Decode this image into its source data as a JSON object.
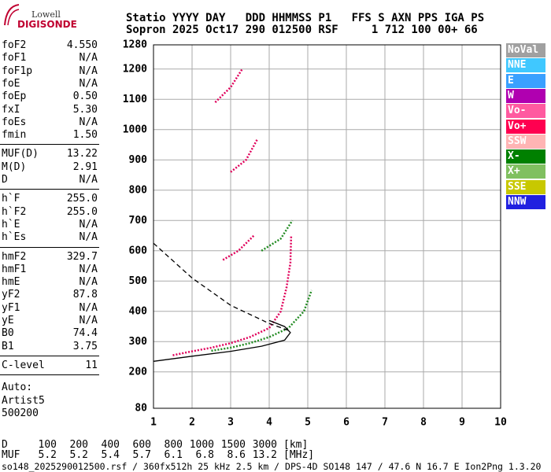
{
  "logo": {
    "top": "Lowell",
    "bottom": "DIGISONDE"
  },
  "header": {
    "line1": "Statio YYYY DAY   DDD HHMMSS P1   FFS S AXN PPS IGA PS",
    "line2": "Sopron 2025 Oct17 290 012500 RSF     1 712 100 00+ 66"
  },
  "params": [
    [
      [
        "foF2",
        "4.550"
      ],
      [
        "foF1",
        "N/A"
      ],
      [
        "foF1p",
        "N/A"
      ],
      [
        "foE",
        "N/A"
      ],
      [
        "foEp",
        "0.50"
      ],
      [
        "fxI",
        "5.30"
      ],
      [
        "foEs",
        "N/A"
      ],
      [
        "fmin",
        "1.50"
      ]
    ],
    [
      [
        "MUF(D)",
        "13.22"
      ],
      [
        "M(D)",
        "2.91"
      ],
      [
        "D",
        "N/A"
      ]
    ],
    [
      [
        "h`F",
        "255.0"
      ],
      [
        "h`F2",
        "255.0"
      ],
      [
        "h`E",
        "N/A"
      ],
      [
        "h`Es",
        "N/A"
      ]
    ],
    [
      [
        "hmF2",
        "329.7"
      ],
      [
        "hmF1",
        "N/A"
      ],
      [
        "hmE",
        "N/A"
      ],
      [
        "yF2",
        "87.8"
      ],
      [
        "yF1",
        "N/A"
      ],
      [
        "yE",
        "N/A"
      ],
      [
        "B0",
        "74.4"
      ],
      [
        "B1",
        "3.75"
      ]
    ],
    [
      [
        "C-level",
        "11"
      ]
    ]
  ],
  "auto": [
    "Auto:",
    "Artist5",
    "500200"
  ],
  "legend": [
    {
      "name": "NoVal",
      "color": "#a0a0a0"
    },
    {
      "name": "NNE",
      "color": "#40c8ff"
    },
    {
      "name": "E",
      "color": "#3aa0ff"
    },
    {
      "name": "W",
      "color": "#b000b0"
    },
    {
      "name": "Vo-",
      "color": "#ff5aa0"
    },
    {
      "name": "Vo+",
      "color": "#ff0050"
    },
    {
      "name": "SSW",
      "color": "#ffb4b4"
    },
    {
      "name": "X-",
      "color": "#008000"
    },
    {
      "name": "X+",
      "color": "#80c060"
    },
    {
      "name": "SSE",
      "color": "#c8c800"
    },
    {
      "name": "NNW",
      "color": "#2020e0"
    }
  ],
  "table": {
    "rows": [
      {
        "label": "D",
        "cells": [
          "100",
          "200",
          "400",
          "600",
          "800",
          "1000",
          "1500",
          "3000"
        ],
        "unit": "[km]"
      },
      {
        "label": "MUF",
        "cells": [
          "5.2",
          "5.2",
          "5.4",
          "5.7",
          "6.1",
          "6.8",
          "8.6",
          "13.2"
        ],
        "unit": "[MHz]"
      }
    ]
  },
  "footer": "so148_2025290012500.rsf / 360fx512h 25 kHz 2.5 km / DPS-4D SO148 147 / 47.6 N 16.7 E Ion2Png 1.3.20",
  "chart_data": {
    "type": "line",
    "xlim": [
      1,
      10
    ],
    "xticks": [
      1,
      2,
      3,
      4,
      5,
      6,
      7,
      8,
      9,
      10
    ],
    "ylim": [
      80,
      1280
    ],
    "yticks": [
      80,
      200,
      300,
      400,
      500,
      600,
      700,
      800,
      900,
      1000,
      1100,
      1200,
      1280
    ],
    "grid": true,
    "series": [
      {
        "color": "#e0005a",
        "style": "dotted",
        "x": [
          1.5,
          2,
          2.5,
          3,
          3.5,
          4,
          4.3,
          4.45,
          4.55,
          4.57
        ],
        "values": [
          255,
          268,
          280,
          295,
          315,
          345,
          400,
          480,
          560,
          650
        ]
      },
      {
        "color": "#228b22",
        "style": "dotted",
        "x": [
          2.5,
          3,
          3.5,
          4,
          4.5,
          4.9,
          5.1
        ],
        "values": [
          270,
          280,
          295,
          315,
          345,
          400,
          470
        ]
      },
      {
        "color": "#e0005a",
        "style": "dotted",
        "x": [
          2.8,
          3.2,
          3.6
        ],
        "values": [
          570,
          600,
          650
        ]
      },
      {
        "color": "#228b22",
        "style": "dotted",
        "x": [
          3.8,
          4.3,
          4.6
        ],
        "values": [
          600,
          640,
          700
        ]
      },
      {
        "color": "#e0005a",
        "style": "dotted",
        "x": [
          3.0,
          3.4,
          3.7
        ],
        "values": [
          860,
          900,
          970
        ]
      },
      {
        "color": "#e0005a",
        "style": "dotted",
        "x": [
          2.6,
          3.0,
          3.3
        ],
        "values": [
          1090,
          1140,
          1200
        ]
      },
      {
        "color": "#000000",
        "style": "solid",
        "x": [
          1,
          2,
          3,
          3.8,
          4.4,
          4.55,
          4.4,
          4.0
        ],
        "values": [
          235,
          252,
          268,
          285,
          305,
          330,
          350,
          370
        ]
      },
      {
        "color": "#000000",
        "style": "dashed",
        "x": [
          1,
          2,
          3,
          4,
          4.55
        ],
        "values": [
          625,
          510,
          420,
          360,
          335
        ]
      }
    ]
  }
}
